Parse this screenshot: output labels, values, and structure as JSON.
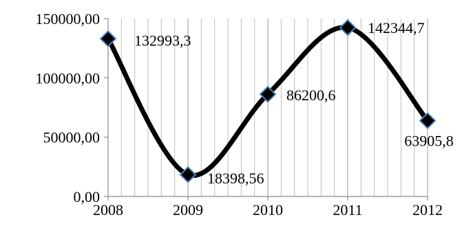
{
  "chart_data": {
    "type": "line",
    "title": "",
    "xlabel": "",
    "ylabel": "",
    "x": [
      "2008",
      "2009",
      "2010",
      "2011",
      "2012"
    ],
    "series": [
      {
        "values": [
          132993.3,
          18398.56,
          86200.6,
          142344.7,
          63905.8
        ],
        "data_labels": [
          "132993,3",
          "18398,56",
          "86200,6",
          "142344,7",
          "63905,8"
        ],
        "line_color": "#000000",
        "marker_fill": "#000000",
        "marker_edge": "#4f81bd",
        "marker_shape": "diamond",
        "smooth": true
      }
    ],
    "ylim": [
      0,
      150000
    ],
    "yticks": [
      0,
      50000,
      100000,
      150000
    ],
    "ytick_labels": [
      "0,00",
      "50000,00",
      "100000,00",
      "150000,00"
    ],
    "grid": {
      "vertical": true,
      "horizontal": false
    },
    "legend": "none"
  }
}
